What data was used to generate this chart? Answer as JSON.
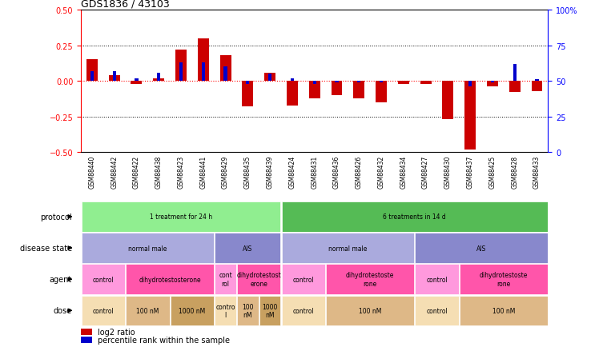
{
  "title": "GDS1836 / 43103",
  "samples": [
    "GSM88440",
    "GSM88442",
    "GSM88422",
    "GSM88438",
    "GSM88423",
    "GSM88441",
    "GSM88429",
    "GSM88435",
    "GSM88439",
    "GSM88424",
    "GSM88431",
    "GSM88436",
    "GSM88426",
    "GSM88432",
    "GSM88434",
    "GSM88427",
    "GSM88430",
    "GSM88437",
    "GSM88425",
    "GSM88428",
    "GSM88433"
  ],
  "log2_ratio": [
    0.15,
    0.04,
    -0.02,
    0.02,
    0.22,
    0.3,
    0.18,
    -0.18,
    0.06,
    -0.17,
    -0.12,
    -0.1,
    -0.12,
    -0.15,
    -0.02,
    -0.02,
    -0.27,
    -0.48,
    -0.04,
    -0.08,
    -0.07
  ],
  "pct_rank": [
    57,
    57,
    52,
    56,
    63,
    63,
    60,
    48,
    55,
    52,
    48,
    49,
    49,
    49,
    50,
    50,
    50,
    46,
    49,
    62,
    51
  ],
  "protocol_groups": [
    {
      "label": "1 treatment for 24 h",
      "start": 0,
      "end": 9,
      "color": "#90EE90"
    },
    {
      "label": "6 treatments in 14 d",
      "start": 9,
      "end": 21,
      "color": "#55BB55"
    }
  ],
  "disease_groups": [
    {
      "label": "normal male",
      "start": 0,
      "end": 6,
      "color": "#AAAADD"
    },
    {
      "label": "AIS",
      "start": 6,
      "end": 9,
      "color": "#8888CC"
    },
    {
      "label": "normal male",
      "start": 9,
      "end": 15,
      "color": "#AAAADD"
    },
    {
      "label": "AIS",
      "start": 15,
      "end": 21,
      "color": "#8888CC"
    }
  ],
  "agent_groups": [
    {
      "label": "control",
      "start": 0,
      "end": 2,
      "color": "#FF99DD"
    },
    {
      "label": "dihydrotestosterone",
      "start": 2,
      "end": 6,
      "color": "#FF55AA"
    },
    {
      "label": "cont\nrol",
      "start": 6,
      "end": 7,
      "color": "#FF99DD"
    },
    {
      "label": "dihydrotestost\nerone",
      "start": 7,
      "end": 9,
      "color": "#FF55AA"
    },
    {
      "label": "control",
      "start": 9,
      "end": 11,
      "color": "#FF99DD"
    },
    {
      "label": "dihydrotestoste\nrone",
      "start": 11,
      "end": 15,
      "color": "#FF55AA"
    },
    {
      "label": "control",
      "start": 15,
      "end": 17,
      "color": "#FF99DD"
    },
    {
      "label": "dihydrotestoste\nrone",
      "start": 17,
      "end": 21,
      "color": "#FF55AA"
    }
  ],
  "dose_groups": [
    {
      "label": "control",
      "start": 0,
      "end": 2,
      "color": "#F5DEB3"
    },
    {
      "label": "100 nM",
      "start": 2,
      "end": 4,
      "color": "#DEB887"
    },
    {
      "label": "1000 nM",
      "start": 4,
      "end": 6,
      "color": "#C8A060"
    },
    {
      "label": "contro\nl",
      "start": 6,
      "end": 7,
      "color": "#F5DEB3"
    },
    {
      "label": "100\nnM",
      "start": 7,
      "end": 8,
      "color": "#DEB887"
    },
    {
      "label": "1000\nnM",
      "start": 8,
      "end": 9,
      "color": "#C8A060"
    },
    {
      "label": "control",
      "start": 9,
      "end": 11,
      "color": "#F5DEB3"
    },
    {
      "label": "100 nM",
      "start": 11,
      "end": 15,
      "color": "#DEB887"
    },
    {
      "label": "control",
      "start": 15,
      "end": 17,
      "color": "#F5DEB3"
    },
    {
      "label": "100 nM",
      "start": 17,
      "end": 21,
      "color": "#DEB887"
    }
  ],
  "row_labels": [
    "protocol",
    "disease state",
    "agent",
    "dose"
  ],
  "ylim": [
    -0.5,
    0.5
  ],
  "y_ticks_left": [
    -0.5,
    -0.25,
    0,
    0.25,
    0.5
  ],
  "y_ticks_right": [
    0,
    25,
    50,
    75,
    100
  ],
  "bar_color_red": "#CC0000",
  "bar_color_blue": "#0000CC",
  "bg_color": "#FFFFFF"
}
